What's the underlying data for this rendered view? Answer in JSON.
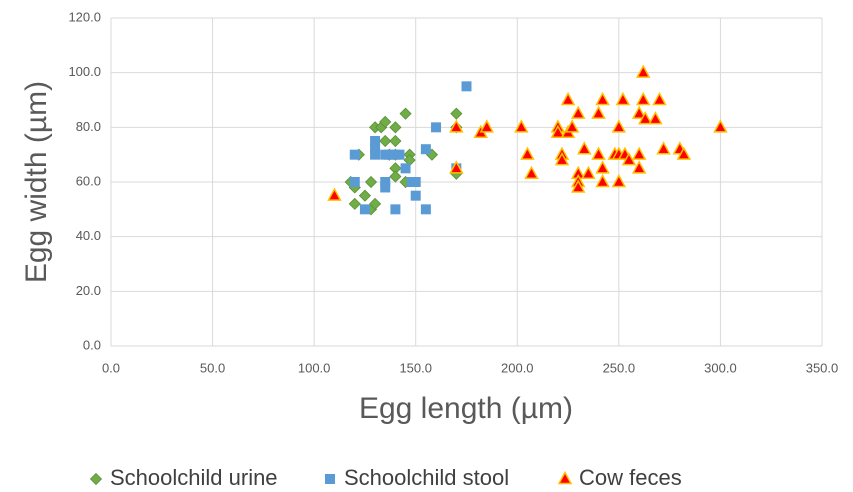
{
  "chart_data": {
    "type": "scatter",
    "x_label": "Egg length (µm)",
    "y_label": "Egg width (µm)",
    "xlim": [
      0,
      350
    ],
    "ylim": [
      0,
      120
    ],
    "xticks": [
      {
        "value": 0,
        "label": "0.0"
      },
      {
        "value": 50,
        "label": "50.0"
      },
      {
        "value": 100,
        "label": "100.0"
      },
      {
        "value": 150,
        "label": "150.0"
      },
      {
        "value": 200,
        "label": "200.0"
      },
      {
        "value": 250,
        "label": "250.0"
      },
      {
        "value": 300,
        "label": "300.0"
      },
      {
        "value": 350,
        "label": "350.0"
      }
    ],
    "yticks": [
      {
        "value": 0,
        "label": "0.0"
      },
      {
        "value": 20,
        "label": "20.0"
      },
      {
        "value": 40,
        "label": "40.0"
      },
      {
        "value": 60,
        "label": "60.0"
      },
      {
        "value": 80,
        "label": "80.0"
      },
      {
        "value": 100,
        "label": "100.0"
      },
      {
        "value": 120,
        "label": "120.0"
      }
    ],
    "grid": true,
    "legend": "bottom",
    "series": [
      {
        "name": "Schoolchild urine",
        "color": "#70ad47",
        "marker": "diamond",
        "x": [
          118,
          120,
          120,
          122,
          125,
          128,
          128,
          130,
          130,
          133,
          135,
          135,
          137,
          140,
          140,
          140,
          140,
          140,
          145,
          145,
          147,
          147,
          158,
          170,
          170,
          170
        ],
        "values": [
          60,
          58,
          52,
          70,
          55,
          60,
          50,
          80,
          52,
          80,
          82,
          75,
          70,
          80,
          75,
          70,
          65,
          62,
          85,
          60,
          70,
          68,
          70,
          85,
          80,
          63
        ]
      },
      {
        "name": "Schoolchild stool",
        "color": "#5b9bd5",
        "marker": "square",
        "x": [
          120,
          120,
          125,
          130,
          130,
          130,
          135,
          135,
          135,
          137,
          140,
          140,
          142,
          145,
          148,
          150,
          150,
          155,
          155,
          160,
          170,
          175
        ],
        "values": [
          70,
          60,
          50,
          75,
          72,
          70,
          70,
          60,
          58,
          70,
          70,
          50,
          70,
          65,
          60,
          60,
          55,
          72,
          50,
          80,
          65,
          95
        ]
      },
      {
        "name": "Cow feces",
        "color": "#ff0000",
        "marker": "triangle",
        "x": [
          110,
          170,
          170,
          182,
          185,
          202,
          205,
          207,
          220,
          220,
          222,
          222,
          225,
          225,
          227,
          230,
          230,
          230,
          230,
          233,
          235,
          240,
          240,
          242,
          242,
          242,
          248,
          250,
          250,
          250,
          252,
          253,
          255,
          260,
          260,
          260,
          262,
          262,
          263,
          268,
          270,
          272,
          280,
          282,
          300
        ],
        "values": [
          55,
          80,
          65,
          78,
          80,
          80,
          70,
          63,
          80,
          78,
          70,
          68,
          90,
          78,
          80,
          85,
          63,
          60,
          58,
          72,
          63,
          70,
          85,
          90,
          65,
          60,
          70,
          80,
          70,
          60,
          90,
          70,
          68,
          85,
          70,
          65,
          100,
          90,
          83,
          83,
          90,
          72,
          72,
          70,
          80
        ]
      }
    ]
  }
}
